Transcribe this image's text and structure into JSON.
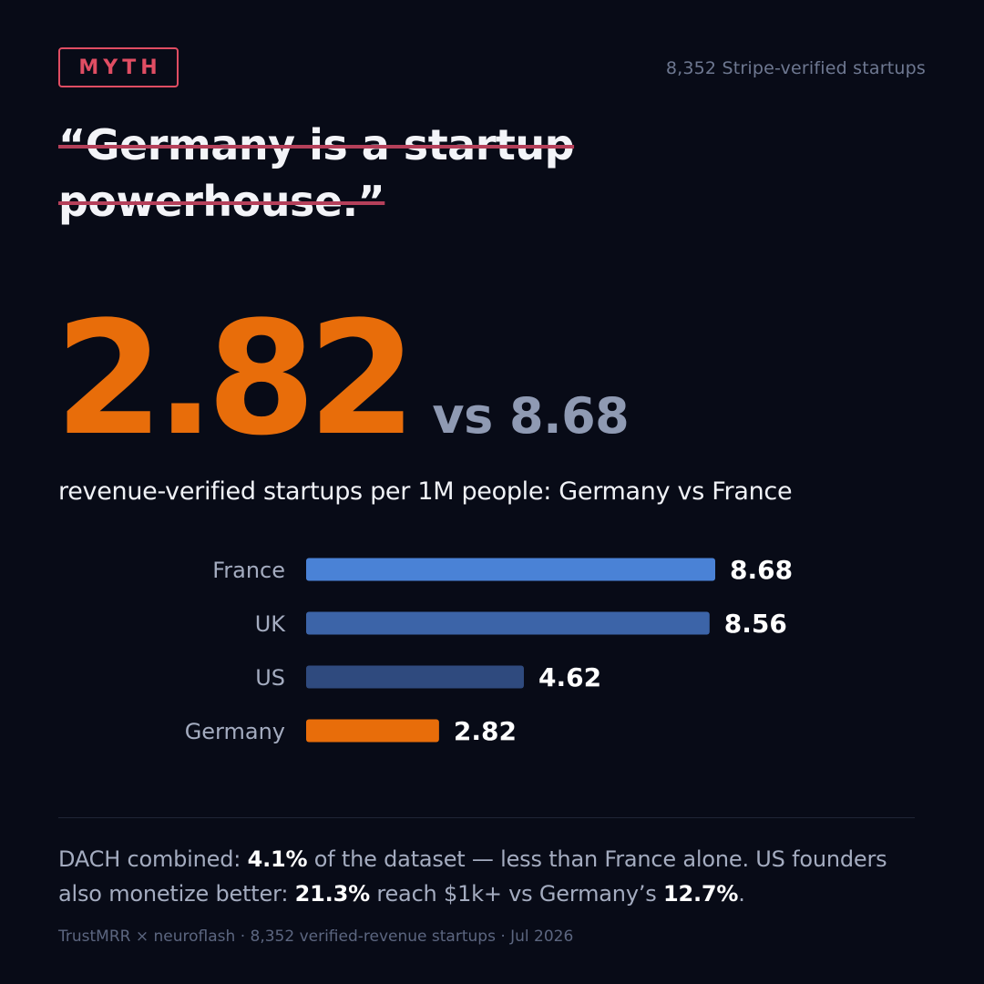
{
  "badge": "MYTH",
  "sample_note": "8,352 Stripe-verified startups",
  "myth": {
    "line1": "“Germany is a startup",
    "line2": "powerhouse.”"
  },
  "hero": {
    "value": "2.82",
    "comparison": "vs 8.68"
  },
  "subtitle": "revenue-verified startups per 1M people: Germany vs France",
  "colors": {
    "background": "#080b17",
    "accent_orange": "#e86d0a",
    "myth_red": "#e04d63",
    "bar_france": "#4a82d6",
    "bar_uk": "#3c64a8",
    "bar_us": "#2f4a7e",
    "bar_germany": "#e86d0a"
  },
  "chart_data": {
    "type": "bar",
    "orientation": "horizontal",
    "categories": [
      "France",
      "UK",
      "US",
      "Germany"
    ],
    "values": [
      8.68,
      8.56,
      4.62,
      2.82
    ],
    "value_labels": [
      "8.68",
      "8.56",
      "4.62",
      "2.82"
    ],
    "colors": [
      "#4a82d6",
      "#3c64a8",
      "#2f4a7e",
      "#e86d0a"
    ],
    "title": "",
    "xlabel": "",
    "ylabel": "",
    "xlim": [
      0,
      8.68
    ],
    "grid": false,
    "legend": "none"
  },
  "summary": {
    "p1": "DACH combined: ",
    "b1": "4.1%",
    "p2": " of the dataset — less than France alone. US founders also monetize better: ",
    "b2": "21.3%",
    "p3": " reach $1k+ vs Germany’s ",
    "b3": "12.7%",
    "p4": "."
  },
  "footer": "TrustMRR × neuroflash · 8,352 verified-revenue startups · Jul 2026"
}
